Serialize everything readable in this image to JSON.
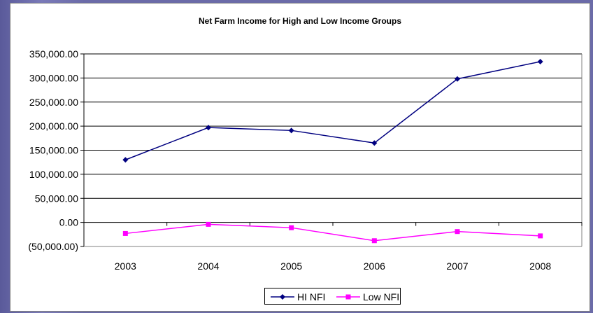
{
  "chart_data": {
    "type": "line",
    "title": "Net Farm Income for High and Low Income Groups",
    "categories": [
      "2003",
      "2004",
      "2005",
      "2006",
      "2007",
      "2008"
    ],
    "ylim": [
      -50000,
      350000
    ],
    "y_ticks": [
      -50000,
      0,
      50000,
      100000,
      150000,
      200000,
      250000,
      300000,
      350000
    ],
    "y_tick_labels": [
      "(50,000.00)",
      "0.00",
      "50,000.00",
      "100,000.00",
      "150,000.00",
      "200,000.00",
      "250,000.00",
      "300,000.00",
      "350,000.00"
    ],
    "grid": true,
    "legend_position": "bottom",
    "series": [
      {
        "name": "HI NFI",
        "color": "#000080",
        "marker": "diamond",
        "values": [
          130000,
          197000,
          191000,
          165000,
          298000,
          334000
        ]
      },
      {
        "name": "Low NFI",
        "color": "#ff00ff",
        "marker": "square",
        "values": [
          -23000,
          -4000,
          -11000,
          -38000,
          -19000,
          -28000
        ]
      }
    ]
  }
}
